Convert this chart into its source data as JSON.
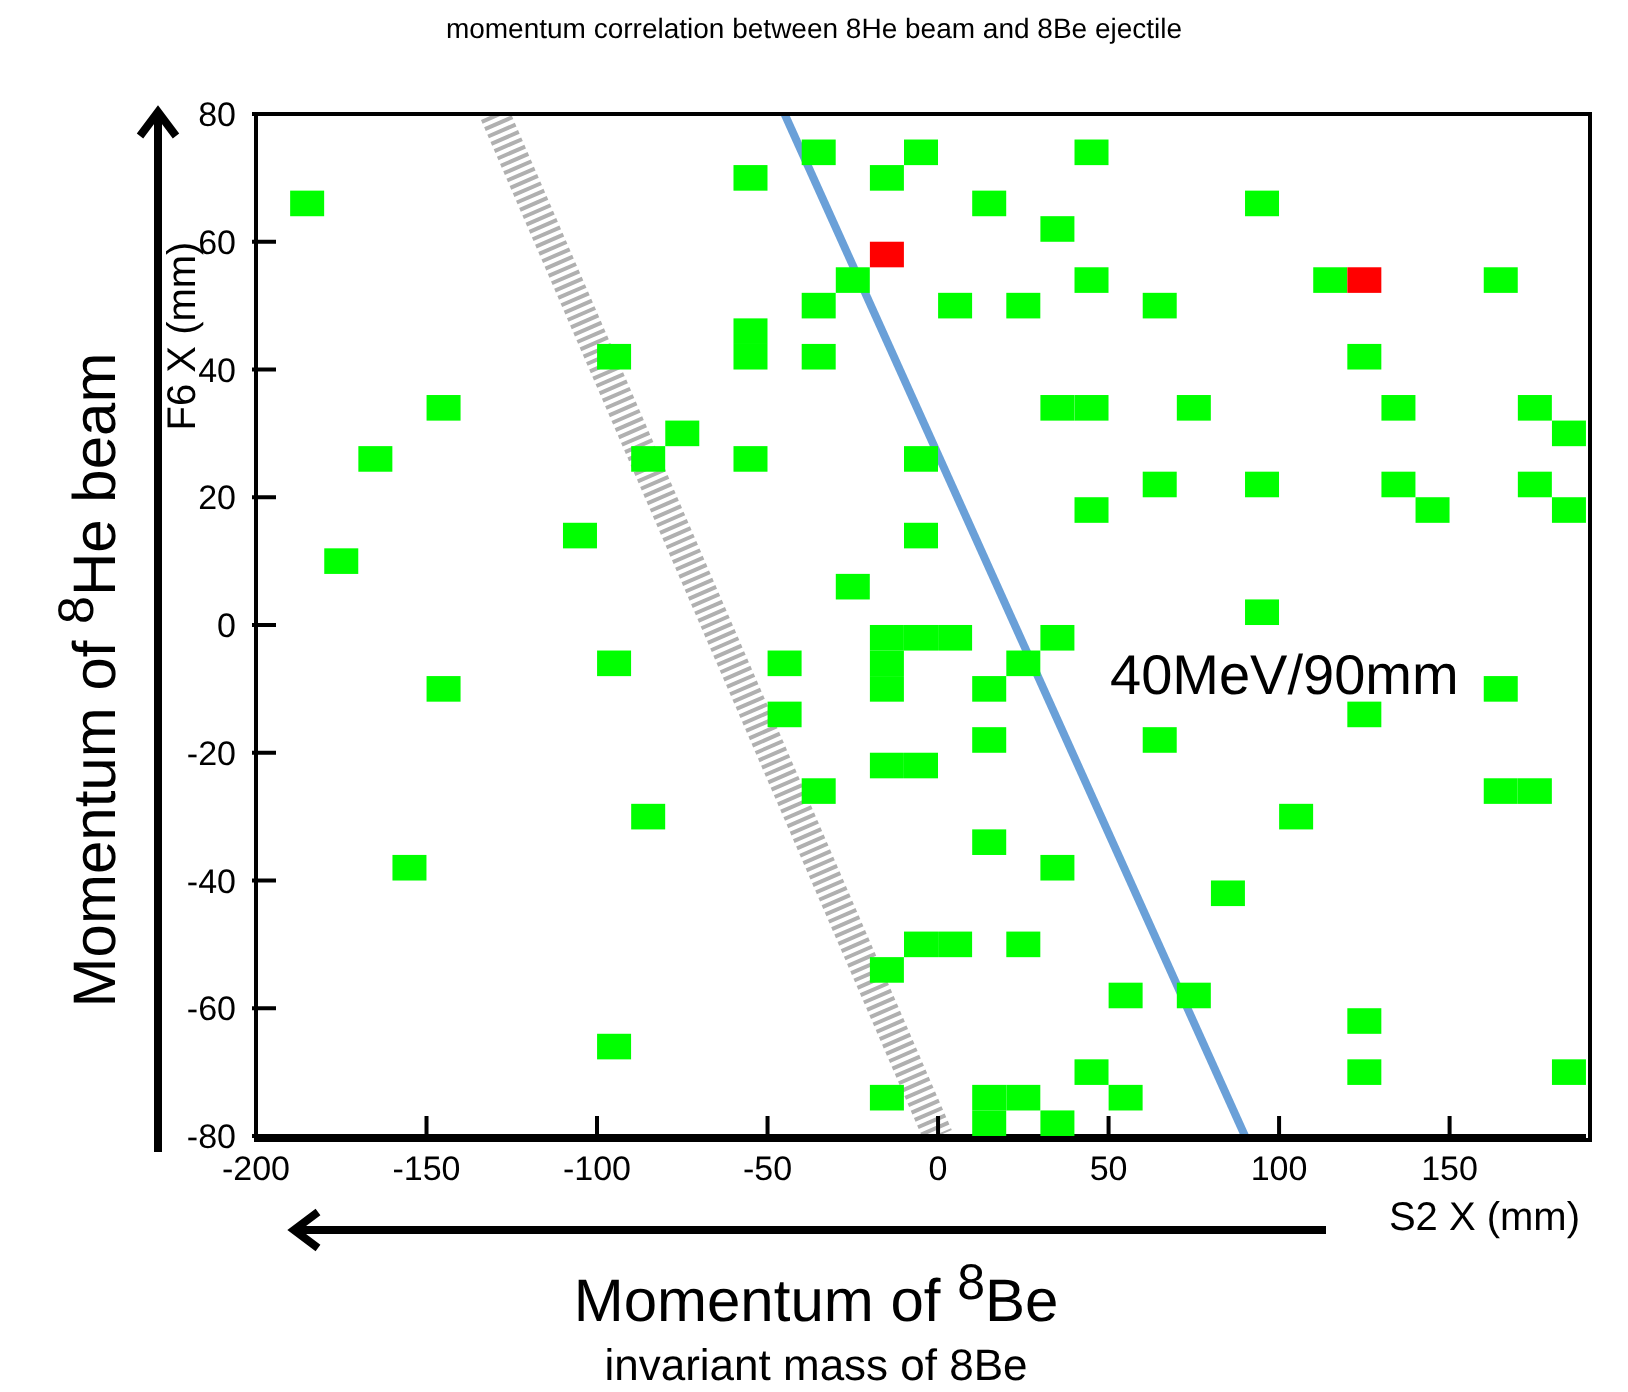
{
  "chart_data": {
    "type": "scatter",
    "title": "momentum correlation between 8He beam and 8Be ejectile",
    "xlabel": "S2 X (mm)",
    "ylabel": "F6 X (mm)",
    "annotations": [
      "40MeV/90mm",
      "Momentum of $^{8}$He beam",
      "Momentum of $^{8}$Be",
      "invariant mass of 8Be"
    ],
    "xlim": [
      -200,
      190
    ],
    "xticks": [
      -200,
      -150,
      -100,
      -50,
      0,
      50,
      100,
      150
    ],
    "ylim": [
      -80,
      80
    ],
    "yticks": [
      -80,
      -60,
      -40,
      -20,
      0,
      20,
      40,
      60,
      80
    ],
    "grid": false,
    "legend": false,
    "series": [
      {
        "color": "#00ff00",
        "marker": "square",
        "x": [
          -185,
          -175,
          -165,
          -145,
          -105,
          -95,
          -85,
          -75,
          -55,
          -55,
          -55,
          -55,
          -35,
          -35,
          -35,
          -25,
          -25,
          -15,
          -15,
          -15,
          -15,
          -5,
          5,
          -5,
          45,
          15,
          95,
          35,
          45,
          115,
          165,
          5,
          25,
          65,
          125,
          35,
          45,
          75,
          135,
          175,
          185,
          -5,
          65,
          95,
          135,
          175,
          45,
          145,
          185,
          -5,
          95,
          35,
          25,
          15,
          165,
          125,
          15,
          65,
          -15,
          -5,
          165,
          175,
          105,
          15,
          35,
          85,
          -5,
          5,
          25,
          -15,
          55,
          75,
          125,
          45,
          125,
          185,
          -15,
          15,
          25,
          55,
          15,
          35,
          -95,
          -145,
          -45,
          -45,
          -35,
          -85,
          -155,
          -95
        ],
        "values": [
          66,
          10,
          26,
          34,
          14,
          42,
          26,
          30,
          70,
          46,
          42,
          26,
          74,
          50,
          42,
          54,
          6,
          70,
          -2,
          -6,
          -10,
          -2,
          -2,
          74,
          74,
          66,
          66,
          62,
          54,
          54,
          54,
          50,
          50,
          50,
          42,
          34,
          34,
          34,
          34,
          34,
          30,
          26,
          22,
          22,
          22,
          22,
          18,
          18,
          18,
          14,
          2,
          -2,
          -6,
          -10,
          -10,
          -14,
          -18,
          -18,
          -22,
          -22,
          -26,
          -26,
          -30,
          -34,
          -38,
          -42,
          -50,
          -50,
          -50,
          -54,
          -58,
          -58,
          -62,
          -70,
          -70,
          -70,
          -74,
          -74,
          -74,
          -74,
          -78,
          -78,
          -6,
          -10,
          -6,
          -14,
          -26,
          -30,
          -38,
          -66
        ]
      },
      {
        "color": "#ff0000",
        "marker": "square",
        "x": [
          -15,
          125
        ],
        "values": [
          58,
          54
        ]
      },
      {
        "type": "line",
        "color": "#6aa0d8",
        "x": [
          -45,
          90
        ],
        "values": [
          80,
          -80
        ]
      },
      {
        "type": "line",
        "color": "#b0b0b0",
        "line_style": "dotted",
        "x": [
          -130,
          0
        ],
        "values": [
          80,
          -80
        ]
      }
    ]
  }
}
